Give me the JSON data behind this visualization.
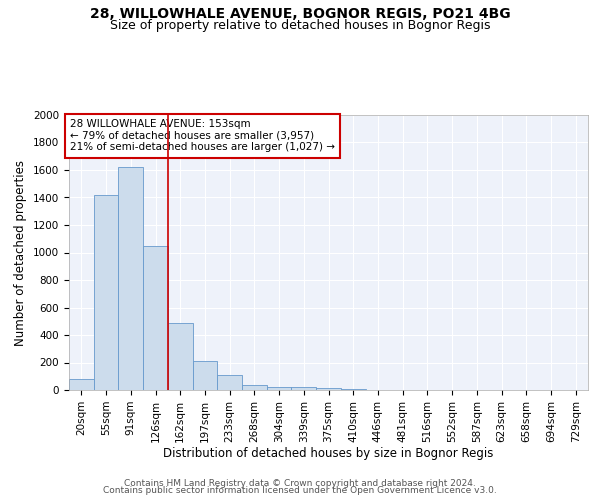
{
  "title": "28, WILLOWHALE AVENUE, BOGNOR REGIS, PO21 4BG",
  "subtitle": "Size of property relative to detached houses in Bognor Regis",
  "xlabel": "Distribution of detached houses by size in Bognor Regis",
  "ylabel": "Number of detached properties",
  "categories": [
    "20sqm",
    "55sqm",
    "91sqm",
    "126sqm",
    "162sqm",
    "197sqm",
    "233sqm",
    "268sqm",
    "304sqm",
    "339sqm",
    "375sqm",
    "410sqm",
    "446sqm",
    "481sqm",
    "516sqm",
    "552sqm",
    "587sqm",
    "623sqm",
    "658sqm",
    "694sqm",
    "729sqm"
  ],
  "bar_heights": [
    80,
    1420,
    1620,
    1050,
    490,
    210,
    110,
    40,
    25,
    20,
    15,
    5,
    0,
    0,
    0,
    0,
    0,
    0,
    0,
    0,
    0
  ],
  "bar_color": "#ccdcec",
  "bar_edge_color": "#6699cc",
  "ylim": [
    0,
    2000
  ],
  "yticks": [
    0,
    200,
    400,
    600,
    800,
    1000,
    1200,
    1400,
    1600,
    1800,
    2000
  ],
  "red_line_x": 3.5,
  "red_line_color": "#cc0000",
  "annotation_text": "28 WILLOWHALE AVENUE: 153sqm\n← 79% of detached houses are smaller (3,957)\n21% of semi-detached houses are larger (1,027) →",
  "annotation_box_color": "#ffffff",
  "annotation_box_edge_color": "#cc0000",
  "bg_color": "#eef2fa",
  "grid_color": "#ffffff",
  "footer_line1": "Contains HM Land Registry data © Crown copyright and database right 2024.",
  "footer_line2": "Contains public sector information licensed under the Open Government Licence v3.0.",
  "title_fontsize": 10,
  "subtitle_fontsize": 9,
  "xlabel_fontsize": 8.5,
  "ylabel_fontsize": 8.5,
  "tick_fontsize": 7.5,
  "annotation_fontsize": 7.5,
  "footer_fontsize": 6.5
}
